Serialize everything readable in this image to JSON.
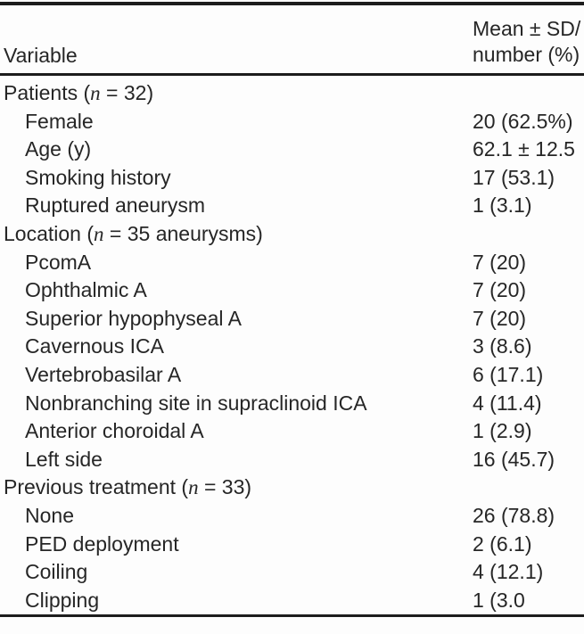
{
  "page": {
    "background_color": "#fdfdfd",
    "text_color": "#262626",
    "rule_color": "#1d1d1d"
  },
  "table": {
    "header": {
      "variable": "Variable",
      "value_line1": "Mean ± SD/",
      "value_line2": "number (%)"
    },
    "rows": [
      {
        "label": "Patients (n = 32)",
        "indent": false,
        "value": ""
      },
      {
        "label": "Female",
        "indent": true,
        "value": "20 (62.5%)"
      },
      {
        "label": "Age (y)",
        "indent": true,
        "value": "62.1 ± 12.5"
      },
      {
        "label": "Smoking history",
        "indent": true,
        "value": "17 (53.1)"
      },
      {
        "label": "Ruptured aneurysm",
        "indent": true,
        "value": "1 (3.1)"
      },
      {
        "label": "Location (n = 35 aneurysms)",
        "indent": false,
        "value": ""
      },
      {
        "label": "PcomA",
        "indent": true,
        "value": "7 (20)"
      },
      {
        "label": "Ophthalmic A",
        "indent": true,
        "value": "7 (20)"
      },
      {
        "label": "Superior hypophyseal A",
        "indent": true,
        "value": "7 (20)"
      },
      {
        "label": "Cavernous ICA",
        "indent": true,
        "value": "3 (8.6)"
      },
      {
        "label": "Vertebrobasilar A",
        "indent": true,
        "value": "6 (17.1)"
      },
      {
        "label": "Nonbranching site in supraclinoid ICA",
        "indent": true,
        "value": "4 (11.4)"
      },
      {
        "label": "Anterior choroidal A",
        "indent": true,
        "value": "1 (2.9)"
      },
      {
        "label": "Left side",
        "indent": true,
        "value": "16 (45.7)"
      },
      {
        "label": "Previous treatment (n = 33)",
        "indent": false,
        "value": ""
      },
      {
        "label": "None",
        "indent": true,
        "value": "26 (78.8)"
      },
      {
        "label": "PED deployment",
        "indent": true,
        "value": "2 (6.1)"
      },
      {
        "label": "Coiling",
        "indent": true,
        "value": "4 (12.1)"
      },
      {
        "label": "Clipping",
        "indent": true,
        "value": "1 (3.0"
      }
    ]
  }
}
